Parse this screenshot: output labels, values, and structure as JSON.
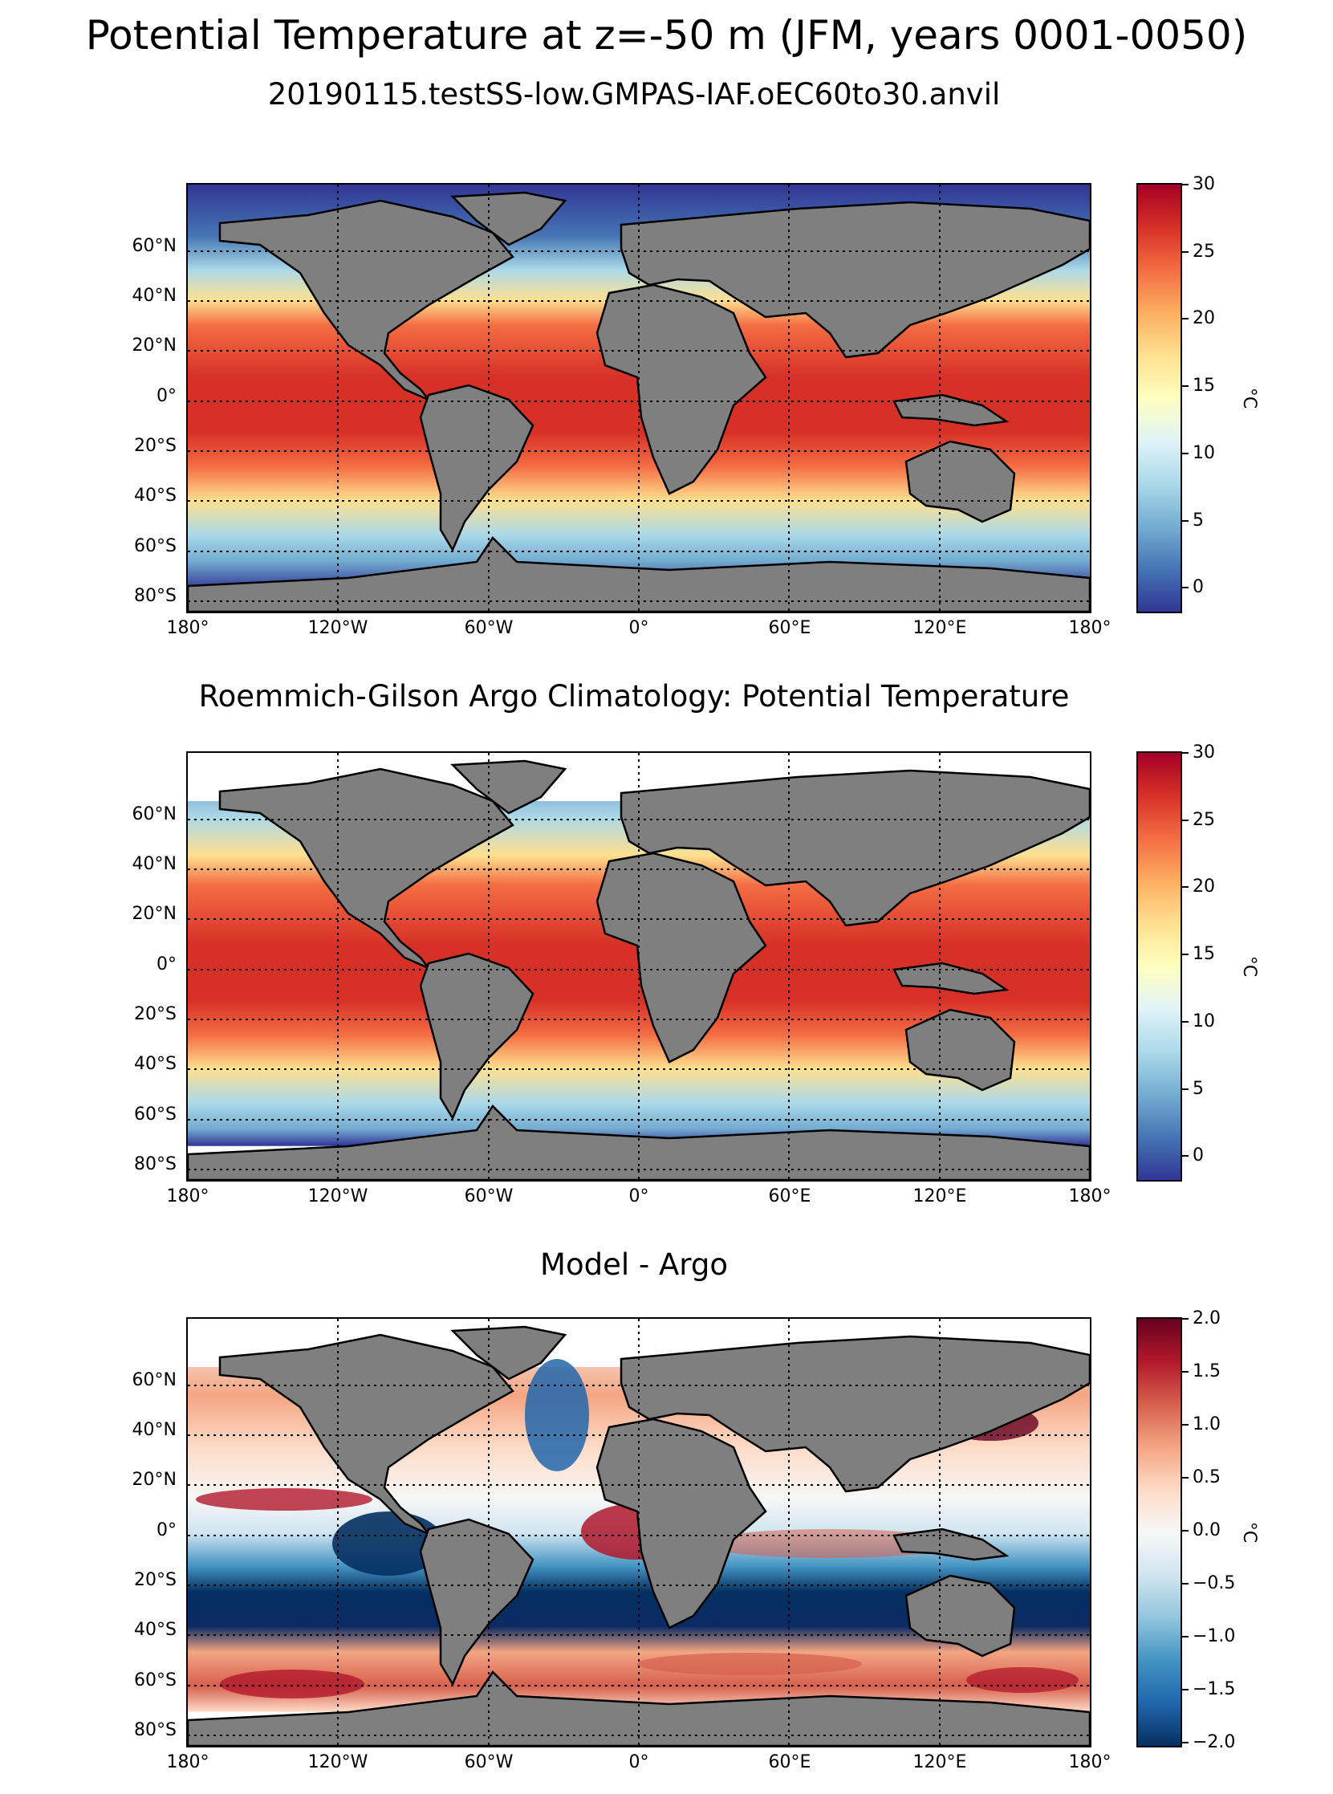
{
  "figure_title": "Potential Temperature at z=-50 m (JFM, years 0001-0050)",
  "panels": [
    {
      "title": "20190115.testSS-low.GMPAS-IAF.oEC60to30.anvil",
      "colormap": "RdYlBu_r",
      "colorbar": {
        "ticks": [
          "30",
          "25",
          "20",
          "15",
          "10",
          "5",
          "0"
        ],
        "unit": "°C",
        "range": [
          -2,
          30
        ]
      }
    },
    {
      "title": "Roemmich-Gilson Argo Climatology: Potential Temperature",
      "colormap": "RdYlBu_r",
      "colorbar": {
        "ticks": [
          "30",
          "25",
          "20",
          "15",
          "10",
          "5",
          "0"
        ],
        "unit": "°C",
        "range": [
          -2,
          30
        ]
      }
    },
    {
      "title": "Model - Argo",
      "colormap": "RdBu_r",
      "colorbar": {
        "ticks": [
          "2.0",
          "1.5",
          "1.0",
          "0.5",
          "0.0",
          "−0.5",
          "−1.0",
          "−1.5",
          "−2.0"
        ],
        "unit": "°C",
        "range": [
          -2,
          2
        ]
      }
    }
  ],
  "lat_ticks": [
    "60°N",
    "40°N",
    "20°N",
    "0°",
    "20°S",
    "40°S",
    "60°S",
    "80°S"
  ],
  "lon_ticks": [
    "180°",
    "120°W",
    "60°W",
    "0°",
    "60°E",
    "120°E",
    "180°"
  ],
  "colors": {
    "land": "#7f7f7f",
    "coast": "#000000",
    "rdylbu_r": [
      "#313695",
      "#4575b4",
      "#74add1",
      "#abd9e9",
      "#e0f3f8",
      "#ffffbf",
      "#fee090",
      "#fdae61",
      "#f46d43",
      "#d73027",
      "#a50026"
    ],
    "rdbu_r": [
      "#053061",
      "#2166ac",
      "#4393c3",
      "#92c5de",
      "#d1e5f0",
      "#f7f7f7",
      "#fddbc7",
      "#f4a582",
      "#d6604d",
      "#b2182b",
      "#67001f"
    ]
  }
}
